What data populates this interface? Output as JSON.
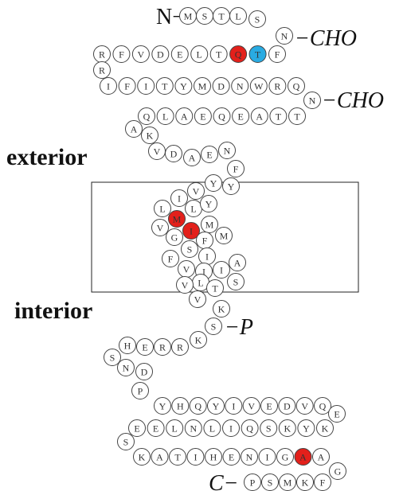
{
  "n_terminus": "N−",
  "c_terminus": "C−",
  "glycosylation_labels": [
    "−CHO",
    "−CHO"
  ],
  "phosphorylation_label": "−P",
  "regions": {
    "exterior": "exterior",
    "interior": "interior"
  },
  "residues": [
    {
      "letter": "M"
    },
    {
      "letter": "S"
    },
    {
      "letter": "T"
    },
    {
      "letter": "L"
    },
    {
      "letter": "S"
    },
    {
      "letter": "N"
    },
    {
      "letter": "F"
    },
    {
      "letter": "T",
      "color": "#29abe2"
    },
    {
      "letter": "Q",
      "color": "#e3201b"
    },
    {
      "letter": "T"
    },
    {
      "letter": "L"
    },
    {
      "letter": "E"
    },
    {
      "letter": "D"
    },
    {
      "letter": "V"
    },
    {
      "letter": "F"
    },
    {
      "letter": "R"
    },
    {
      "letter": "R"
    },
    {
      "letter": "I"
    },
    {
      "letter": "F"
    },
    {
      "letter": "I"
    },
    {
      "letter": "T"
    },
    {
      "letter": "Y"
    },
    {
      "letter": "M"
    },
    {
      "letter": "D"
    },
    {
      "letter": "N"
    },
    {
      "letter": "W"
    },
    {
      "letter": "R"
    },
    {
      "letter": "Q"
    },
    {
      "letter": "N"
    },
    {
      "letter": "T"
    },
    {
      "letter": "T"
    },
    {
      "letter": "A"
    },
    {
      "letter": "E"
    },
    {
      "letter": "Q"
    },
    {
      "letter": "E"
    },
    {
      "letter": "A"
    },
    {
      "letter": "L"
    },
    {
      "letter": "Q"
    },
    {
      "letter": "A"
    },
    {
      "letter": "K"
    },
    {
      "letter": "V"
    },
    {
      "letter": "D"
    },
    {
      "letter": "A"
    },
    {
      "letter": "E"
    },
    {
      "letter": "N"
    },
    {
      "letter": "F"
    },
    {
      "letter": "Y"
    },
    {
      "letter": "Y"
    },
    {
      "letter": "V"
    },
    {
      "letter": "I"
    },
    {
      "letter": "L"
    },
    {
      "letter": "L"
    },
    {
      "letter": "Y"
    },
    {
      "letter": "M",
      "color": "#e3201b"
    },
    {
      "letter": "V"
    },
    {
      "letter": "M"
    },
    {
      "letter": "I",
      "color": "#e3201b"
    },
    {
      "letter": "G"
    },
    {
      "letter": "F"
    },
    {
      "letter": "M"
    },
    {
      "letter": "S"
    },
    {
      "letter": "F"
    },
    {
      "letter": "I"
    },
    {
      "letter": "A"
    },
    {
      "letter": "V"
    },
    {
      "letter": "I"
    },
    {
      "letter": "I"
    },
    {
      "letter": "L"
    },
    {
      "letter": "V"
    },
    {
      "letter": "S"
    },
    {
      "letter": "T"
    },
    {
      "letter": "V"
    },
    {
      "letter": "K"
    },
    {
      "letter": "S"
    },
    {
      "letter": "K"
    },
    {
      "letter": "R"
    },
    {
      "letter": "R"
    },
    {
      "letter": "E"
    },
    {
      "letter": "H"
    },
    {
      "letter": "S"
    },
    {
      "letter": "N"
    },
    {
      "letter": "D"
    },
    {
      "letter": "P"
    },
    {
      "letter": "Y"
    },
    {
      "letter": "H"
    },
    {
      "letter": "Q"
    },
    {
      "letter": "Y"
    },
    {
      "letter": "I"
    },
    {
      "letter": "V"
    },
    {
      "letter": "E"
    },
    {
      "letter": "D"
    },
    {
      "letter": "V"
    },
    {
      "letter": "Q"
    },
    {
      "letter": "E"
    },
    {
      "letter": "K"
    },
    {
      "letter": "Y"
    },
    {
      "letter": "K"
    },
    {
      "letter": "S"
    },
    {
      "letter": "Q"
    },
    {
      "letter": "I"
    },
    {
      "letter": "L"
    },
    {
      "letter": "N"
    },
    {
      "letter": "L"
    },
    {
      "letter": "E"
    },
    {
      "letter": "E"
    },
    {
      "letter": "S"
    },
    {
      "letter": "K"
    },
    {
      "letter": "A"
    },
    {
      "letter": "T"
    },
    {
      "letter": "I"
    },
    {
      "letter": "H"
    },
    {
      "letter": "E"
    },
    {
      "letter": "N"
    },
    {
      "letter": "I"
    },
    {
      "letter": "G"
    },
    {
      "letter": "A",
      "color": "#e3201b"
    },
    {
      "letter": "A"
    },
    {
      "letter": "G"
    },
    {
      "letter": "F"
    },
    {
      "letter": "K"
    },
    {
      "letter": "M"
    },
    {
      "letter": "S"
    },
    {
      "letter": "P"
    }
  ]
}
